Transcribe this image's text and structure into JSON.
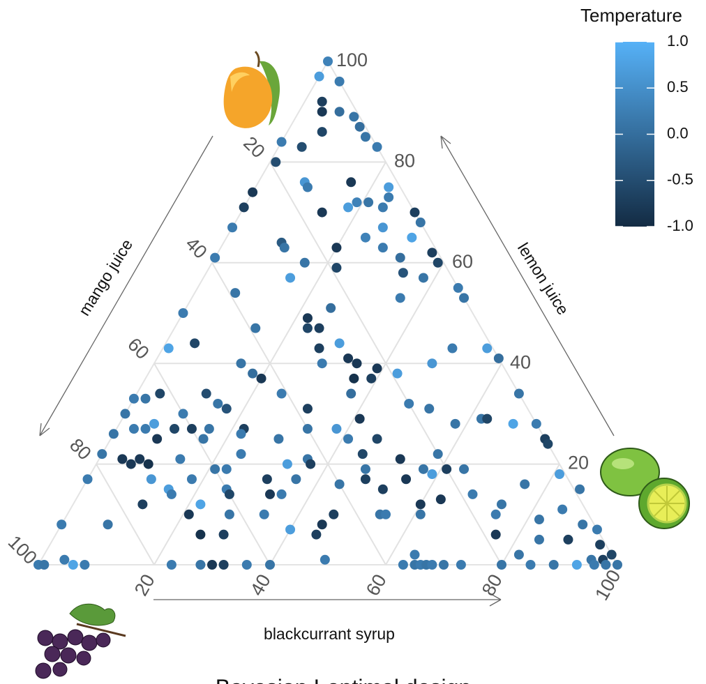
{
  "chart_data": {
    "type": "ternary",
    "title": "Bayesian I-optimal design",
    "grid": true,
    "axes": {
      "bottom": {
        "label": "blackcurrant syrup",
        "ticks": [
          20,
          40,
          60,
          80,
          100
        ]
      },
      "right": {
        "label": "lemon juice",
        "ticks": [
          20,
          40,
          60,
          80,
          100
        ]
      },
      "left": {
        "label": "mango juice",
        "ticks": [
          20,
          40,
          60,
          80,
          100
        ]
      }
    },
    "points": {
      "blackcurrant": [
        0,
        0,
        4,
        3,
        4,
        7,
        10,
        6,
        0,
        4,
        12,
        14,
        17,
        1,
        8,
        9,
        16,
        23,
        24,
        19,
        18,
        21,
        24,
        0,
        0,
        14,
        30,
        32,
        0,
        26,
        24,
        28,
        32,
        20,
        10,
        11,
        37,
        39,
        0,
        16,
        32,
        22,
        34,
        15,
        38,
        45,
        7,
        36,
        47,
        25,
        0,
        22,
        14,
        25,
        23,
        30,
        27,
        5,
        1,
        50,
        56,
        33,
        35,
        39,
        48,
        59,
        29,
        15,
        18,
        43,
        36,
        39,
        20,
        25,
        4,
        12,
        37,
        2,
        66,
        48,
        15,
        17,
        31,
        52,
        0,
        41,
        0,
        10,
        62,
        63,
        68,
        72,
        58,
        6,
        5,
        38,
        33,
        22,
        22,
        16,
        13,
        0,
        3,
        10,
        8,
        16,
        29,
        41,
        46,
        75,
        76,
        0,
        58,
        52,
        45,
        4,
        6,
        7,
        9,
        14,
        33,
        36,
        24,
        37,
        57,
        61,
        64,
        59,
        0,
        21,
        23,
        47,
        31,
        36,
        48,
        44,
        55,
        76,
        81,
        11,
        18,
        15,
        16,
        12,
        22,
        25,
        26,
        33,
        35,
        52,
        60,
        63,
        68,
        74,
        86,
        21,
        28,
        34,
        45,
        46,
        54,
        55,
        61,
        74,
        82,
        85,
        90,
        93,
        8,
        0,
        40,
        45,
        25,
        29,
        76,
        84,
        89,
        95,
        98,
        100,
        97,
        95,
        82,
        64,
        0,
        1,
        4,
        6,
        8,
        23,
        28,
        30,
        32,
        36,
        40,
        49,
        63,
        65,
        66,
        67,
        68,
        70,
        73,
        80,
        85,
        89,
        93,
        96,
        98
      ],
      "lemon": [
        100,
        97,
        96,
        92,
        90,
        90,
        89,
        86,
        84,
        83,
        87,
        85,
        83,
        80,
        76,
        75,
        76,
        75,
        73,
        72,
        71,
        72,
        71,
        74,
        71,
        70,
        70,
        68,
        67,
        67,
        65,
        63,
        65,
        63,
        64,
        63,
        62,
        60,
        61,
        60,
        61,
        59,
        58,
        57,
        57,
        55,
        54,
        53,
        53,
        51,
        50,
        49,
        47,
        47,
        47,
        44,
        43,
        44,
        43,
        43,
        43,
        41,
        40,
        39,
        40,
        41,
        40,
        40,
        38,
        38,
        37,
        37,
        37,
        34,
        34,
        34,
        34,
        33,
        34,
        32,
        32,
        31,
        31,
        31,
        33,
        29,
        30,
        30,
        29,
        29,
        28,
        28,
        28,
        28,
        27,
        27,
        27,
        27,
        26,
        27,
        27,
        26,
        27,
        27,
        25,
        25,
        25,
        25,
        25,
        25,
        24,
        22,
        22,
        21,
        22,
        21,
        20,
        21,
        20,
        21,
        20,
        21,
        22,
        20,
        19,
        19,
        19,
        18,
        17,
        19,
        19,
        19,
        17,
        17,
        17,
        16,
        17,
        16,
        18,
        17,
        17,
        15,
        14,
        12,
        12,
        15,
        14,
        14,
        14,
        15,
        12,
        13,
        14,
        12,
        15,
        10,
        10,
        10,
        8,
        10,
        10,
        10,
        10,
        10,
        9,
        11,
        8,
        7,
        8,
        8,
        7,
        6,
        6,
        6,
        6,
        5,
        5,
        4,
        2,
        0,
        1,
        1,
        2,
        2,
        0,
        0,
        1,
        0,
        0,
        0,
        0,
        0,
        0,
        0,
        0,
        1,
        0,
        0,
        0,
        0,
        0,
        0,
        0,
        0,
        0,
        0,
        0,
        0,
        0
      ],
      "temperature": [
        0.3,
        0.7,
        0.2,
        -0.7,
        -0.8,
        0.0,
        0.1,
        -0.6,
        0.2,
        -0.5,
        0.0,
        0.1,
        0.2,
        -0.5,
        0.6,
        0.2,
        -0.8,
        0.7,
        0.2,
        0.3,
        0.7,
        0.1,
        0.2,
        -0.8,
        -0.7,
        -0.8,
        -0.7,
        0.1,
        0.2,
        0.6,
        0.3,
        0.2,
        0.8,
        -0.8,
        -0.3,
        0.1,
        -0.7,
        -0.6,
        0.2,
        0.1,
        0.0,
        -0.6,
        -0.4,
        0.7,
        0.1,
        0.2,
        0.1,
        0.2,
        0.1,
        0.0,
        0.2,
        -0.8,
        0.1,
        -0.7,
        -0.6,
        0.7,
        -0.7,
        -0.6,
        0.8,
        0.2,
        0.7,
        -0.8,
        -0.8,
        -0.8,
        0.6,
        0.0,
        0.2,
        0.1,
        0.0,
        0.7,
        -0.9,
        -0.7,
        -0.8,
        0.2,
        -0.6,
        -0.5,
        0.0,
        0.1,
        0.1,
        0.2,
        0.1,
        -0.4,
        -0.7,
        0.1,
        0.2,
        -0.8,
        0.1,
        0.2,
        0.1,
        -0.6,
        0.8,
        0.2,
        0.1,
        0.7,
        0.2,
        0.6,
        0.1,
        -0.7,
        0.2,
        0.1,
        -0.7,
        0.1,
        0.2,
        -0.6,
        -0.8,
        0.1,
        0.1,
        0.2,
        -0.6,
        -0.7,
        -0.6,
        0.1,
        0.1,
        -0.8,
        -0.6,
        -0.8,
        -0.8,
        -0.8,
        -0.9,
        0.2,
        0.7,
        0.1,
        0.2,
        -0.7,
        0.1,
        -0.7,
        0.1,
        0.7,
        0.2,
        0.1,
        0.2,
        0.1,
        -0.7,
        0.1,
        -0.7,
        0.1,
        -0.8,
        0.1,
        0.7,
        0.6,
        0.2,
        0.7,
        0.2,
        -0.7,
        0.8,
        0.2,
        -0.6,
        -0.8,
        0.2,
        -0.7,
        -0.8,
        -0.8,
        0.2,
        0.1,
        0.1,
        -0.8,
        0.1,
        0.2,
        -0.8,
        -0.7,
        0.1,
        0.2,
        0.1,
        0.2,
        0.1,
        0.2,
        0.1,
        0.2,
        0.1,
        0.2,
        0.7,
        -0.7,
        -0.9,
        -0.7,
        -0.8,
        0.1,
        -0.7,
        -0.7,
        -0.6,
        0.1,
        -0.7,
        0.1,
        0.1,
        0.2,
        0.2,
        0.1,
        0.2,
        0.8,
        0.2,
        0.2,
        0.1,
        -0.8,
        -0.7,
        0.2,
        0.1,
        0.2,
        0.2,
        0.1,
        0.2,
        0.1,
        0.2,
        0.1,
        0.2,
        0.1,
        0.2,
        0.1,
        0.8,
        0.2,
        0.1
      ]
    },
    "colorbar": {
      "title": "Temperature",
      "lim": [
        -1,
        1
      ],
      "low_color": "#132B43",
      "high_color": "#56B1F7",
      "ticks": [
        {
          "value": 1,
          "label": "1.0"
        },
        {
          "value": 0.5,
          "label": "0.5"
        },
        {
          "value": 0,
          "label": "0.0"
        },
        {
          "value": -0.5,
          "label": "-0.5"
        },
        {
          "value": -1,
          "label": "-1.0"
        }
      ]
    }
  }
}
